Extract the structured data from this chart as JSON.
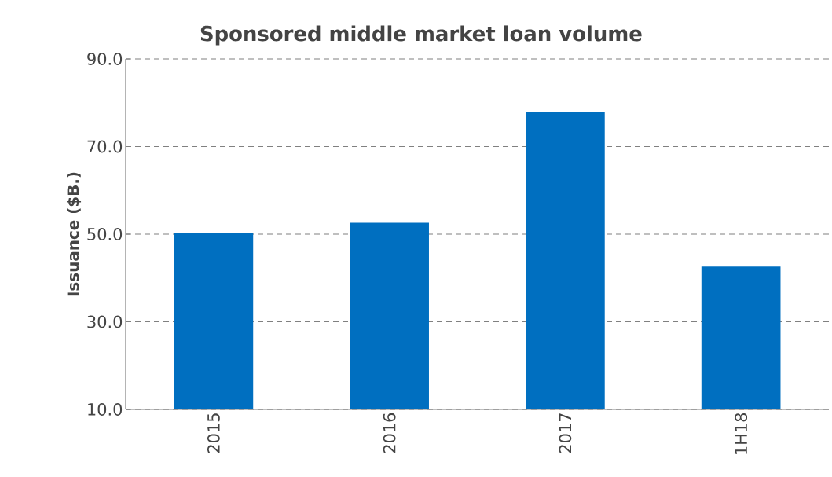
{
  "chart_data": {
    "type": "bar",
    "title": "Sponsored middle market loan volume",
    "ylabel": "Issuance ($B.)",
    "categories": [
      "2015",
      "2016",
      "2017",
      "1H18"
    ],
    "values": [
      50.2,
      52.6,
      77.9,
      42.6
    ],
    "color": "#006fc0",
    "ylim": [
      10,
      90
    ],
    "yticks": [
      {
        "value": 10,
        "label": "10.0"
      },
      {
        "value": 30,
        "label": "30.0"
      },
      {
        "value": 50,
        "label": "50.0"
      },
      {
        "value": 70,
        "label": "70.0"
      },
      {
        "value": 90,
        "label": "90.0"
      }
    ],
    "grid": "y"
  }
}
